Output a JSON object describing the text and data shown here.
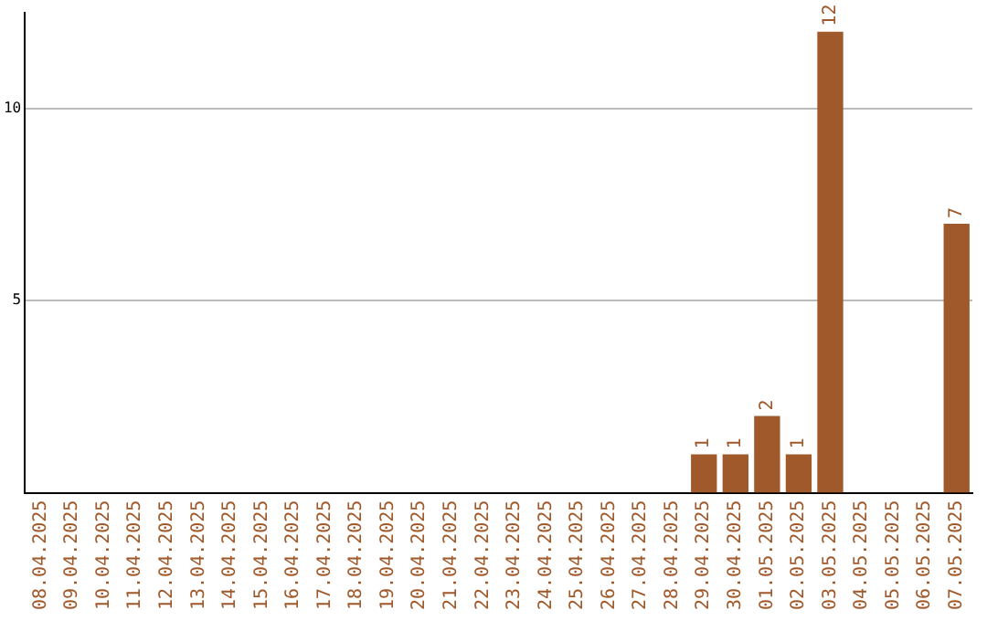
{
  "chart_data": {
    "type": "bar",
    "categories": [
      "08.04.2025",
      "09.04.2025",
      "10.04.2025",
      "11.04.2025",
      "12.04.2025",
      "13.04.2025",
      "14.04.2025",
      "15.04.2025",
      "16.04.2025",
      "17.04.2025",
      "18.04.2025",
      "19.04.2025",
      "20.04.2025",
      "21.04.2025",
      "22.04.2025",
      "23.04.2025",
      "24.04.2025",
      "25.04.2025",
      "26.04.2025",
      "27.04.2025",
      "28.04.2025",
      "29.04.2025",
      "30.04.2025",
      "01.05.2025",
      "02.05.2025",
      "03.05.2025",
      "04.05.2025",
      "05.05.2025",
      "06.05.2025",
      "07.05.2025"
    ],
    "values": [
      0,
      0,
      0,
      0,
      0,
      0,
      0,
      0,
      0,
      0,
      0,
      0,
      0,
      0,
      0,
      0,
      0,
      0,
      0,
      0,
      0,
      1,
      1,
      2,
      1,
      12,
      0,
      0,
      0,
      7
    ],
    "value_labels": [
      null,
      null,
      null,
      null,
      null,
      null,
      null,
      null,
      null,
      null,
      null,
      null,
      null,
      null,
      null,
      null,
      null,
      null,
      null,
      null,
      null,
      "1",
      "1",
      "2",
      "1",
      "12",
      null,
      null,
      null,
      "7"
    ],
    "color": "#a0592a",
    "ylim": [
      0,
      12.5
    ],
    "yticks": [
      5,
      10
    ],
    "grid": "y",
    "legend": false
  }
}
